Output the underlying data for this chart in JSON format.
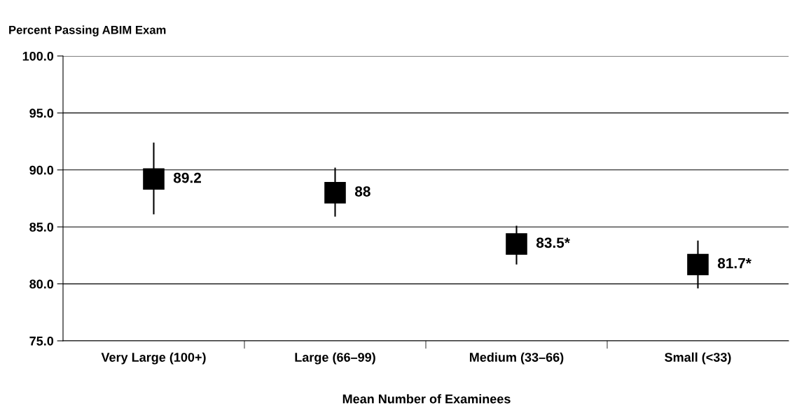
{
  "chart_data": {
    "type": "scatter",
    "ylabel": "Percent Passing ABIM Exam",
    "xlabel": "Mean Number of Examinees",
    "categories": [
      "Very Large (100+)",
      "Large (66–99)",
      "Medium (33–66)",
      "Small (<33)"
    ],
    "values": [
      89.2,
      88,
      83.5,
      81.7
    ],
    "errors": [
      [
        86.1,
        92.4
      ],
      [
        85.9,
        90.2
      ],
      [
        81.7,
        85.1
      ],
      [
        79.6,
        83.8
      ]
    ],
    "value_labels": [
      "89.2",
      "88",
      "83.5*",
      "81.7*"
    ],
    "color": "#000000",
    "marker": "square",
    "ylim": [
      75,
      100
    ],
    "yticks": [
      {
        "value": 75,
        "label": "75.0"
      },
      {
        "value": 80,
        "label": "80.0"
      },
      {
        "value": 85,
        "label": "85.0"
      },
      {
        "value": 90,
        "label": "90.0"
      },
      {
        "value": 95,
        "label": "95.0"
      },
      {
        "value": 100,
        "label": "100.0"
      }
    ],
    "grid": "y",
    "legend": false
  }
}
